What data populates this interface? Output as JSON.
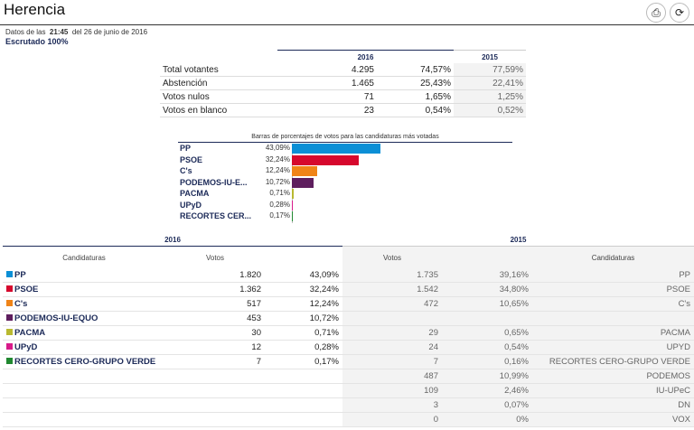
{
  "header": {
    "title": "Herencia",
    "print_icon": "print-icon",
    "refresh_icon": "refresh-icon"
  },
  "info": {
    "prefix": "Datos de las",
    "time": "21:45",
    "date_text": "del 26 de junio de 2016",
    "escrutado": "Escrutado 100%"
  },
  "summary": {
    "year_a": "2016",
    "year_b": "2015",
    "rows": [
      {
        "label": "Total votantes",
        "v16": "4.295",
        "p16": "74,57%",
        "p15": "77,59%"
      },
      {
        "label": "Abstención",
        "v16": "1.465",
        "p16": "25,43%",
        "p15": "22,41%"
      },
      {
        "label": "Votos nulos",
        "v16": "71",
        "p16": "1,65%",
        "p15": "1,25%"
      },
      {
        "label": "Votos en blanco",
        "v16": "23",
        "p16": "0,54%",
        "p15": "0,52%"
      }
    ]
  },
  "chart_data": {
    "type": "bar",
    "title": "Barras de porcentajes de votos para las candidaturas más votadas",
    "categories": [
      "PP",
      "PSOE",
      "C's",
      "PODEMOS-IU-E...",
      "PACMA",
      "UPyD",
      "RECORTES CER..."
    ],
    "values": [
      43.09,
      32.24,
      12.24,
      10.72,
      0.71,
      0.28,
      0.17
    ],
    "labels": [
      "43,09%",
      "32,24%",
      "12,24%",
      "10,72%",
      "0,71%",
      "0,28%",
      "0,17%"
    ],
    "colors": [
      "#0b8fd6",
      "#d6082d",
      "#f08418",
      "#5e1e5e",
      "#b9b930",
      "#d81a8a",
      "#208830"
    ],
    "xlabel": "",
    "ylabel": "",
    "xlim": [
      0,
      100
    ]
  },
  "results": {
    "year_a": "2016",
    "year_b": "2015",
    "col_cand": "Candidaturas",
    "col_votos": "Votos",
    "rows": [
      {
        "name": "PP",
        "color": "#0b8fd6",
        "v16": "1.820",
        "p16": "43,09%",
        "v15": "1.735",
        "p15": "39,16%",
        "n15": "PP"
      },
      {
        "name": "PSOE",
        "color": "#d6082d",
        "v16": "1.362",
        "p16": "32,24%",
        "v15": "1.542",
        "p15": "34,80%",
        "n15": "PSOE"
      },
      {
        "name": "C's",
        "color": "#f08418",
        "v16": "517",
        "p16": "12,24%",
        "v15": "472",
        "p15": "10,65%",
        "n15": "C's"
      },
      {
        "name": "PODEMOS-IU-EQUO",
        "color": "#5e1e5e",
        "v16": "453",
        "p16": "10,72%",
        "v15": "",
        "p15": "",
        "n15": ""
      },
      {
        "name": "PACMA",
        "color": "#b9b930",
        "v16": "30",
        "p16": "0,71%",
        "v15": "29",
        "p15": "0,65%",
        "n15": "PACMA"
      },
      {
        "name": "UPyD",
        "color": "#d81a8a",
        "v16": "12",
        "p16": "0,28%",
        "v15": "24",
        "p15": "0,54%",
        "n15": "UPYD"
      },
      {
        "name": "RECORTES CERO-GRUPO VERDE",
        "color": "#208830",
        "v16": "7",
        "p16": "0,17%",
        "v15": "7",
        "p15": "0,16%",
        "n15": "RECORTES CERO-GRUPO VERDE"
      },
      {
        "name": "",
        "color": "",
        "v16": "",
        "p16": "",
        "v15": "487",
        "p15": "10,99%",
        "n15": "PODEMOS"
      },
      {
        "name": "",
        "color": "",
        "v16": "",
        "p16": "",
        "v15": "109",
        "p15": "2,46%",
        "n15": "IU-UPeC"
      },
      {
        "name": "",
        "color": "",
        "v16": "",
        "p16": "",
        "v15": "3",
        "p15": "0,07%",
        "n15": "DN"
      },
      {
        "name": "",
        "color": "",
        "v16": "",
        "p16": "",
        "v15": "0",
        "p15": "0%",
        "n15": "VOX"
      }
    ]
  }
}
